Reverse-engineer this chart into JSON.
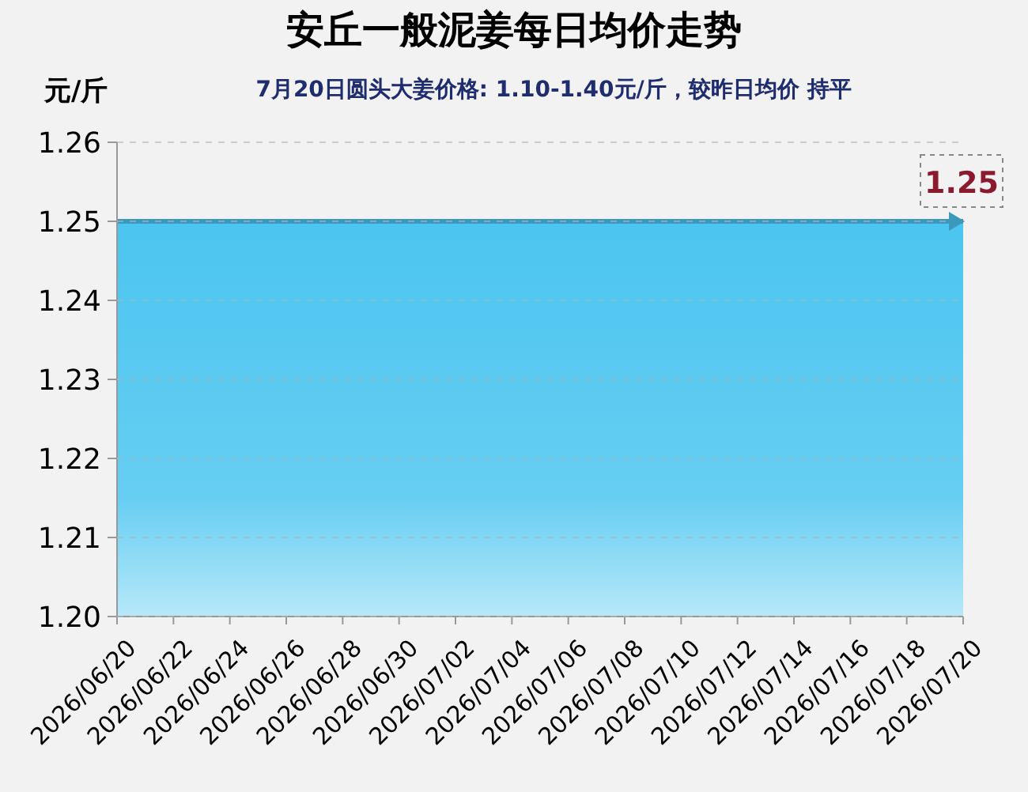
{
  "chart_data": {
    "type": "area",
    "title": "安丘一般泥姜每日均价走势",
    "subtitle": "7月20日圆头大姜价格: 1.10-1.40元/斤，较昨日均价 持平",
    "ylabel": "元/斤",
    "x": [
      "2026-06-20",
      "2026-06-21",
      "2026-06-22",
      "2026-06-23",
      "2026-06-24",
      "2026-06-25",
      "2026-06-26",
      "2026-06-27",
      "2026-06-28",
      "2026-06-29",
      "2026-06-30",
      "2026-07-01",
      "2026-07-02",
      "2026-07-03",
      "2026-07-04",
      "2026-07-05",
      "2026-07-06",
      "2026-07-07",
      "2026-07-08",
      "2026-07-09",
      "2026-07-10",
      "2026-07-11",
      "2026-07-12",
      "2026-07-13",
      "2026-07-14",
      "2026-07-15",
      "2026-07-16",
      "2026-07-17",
      "2026-07-18",
      "2026-07-19",
      "2026-07-20"
    ],
    "series": [
      {
        "color": "#4bc5f0",
        "values": [
          1.25,
          1.25,
          1.25,
          1.25,
          1.25,
          1.25,
          1.25,
          1.25,
          1.25,
          1.25,
          1.25,
          1.25,
          1.25,
          1.25,
          1.25,
          1.25,
          1.25,
          1.25,
          1.25,
          1.25,
          1.25,
          1.25,
          1.25,
          1.25,
          1.25,
          1.25,
          1.25,
          1.25,
          1.25,
          1.25,
          1.25
        ],
        "value_labels": [
          null,
          null,
          null,
          null,
          null,
          null,
          null,
          null,
          null,
          null,
          null,
          null,
          null,
          null,
          null,
          null,
          null,
          null,
          null,
          null,
          null,
          null,
          null,
          null,
          null,
          null,
          null,
          null,
          null,
          null,
          "1.25"
        ]
      }
    ],
    "xlim": [
      "2026-06-20",
      "2026-07-20"
    ],
    "xticks": [
      {
        "value": "2026-06-20",
        "label": "2026/06/20"
      },
      {
        "value": "2026-06-22",
        "label": "2026/06/22"
      },
      {
        "value": "2026-06-24",
        "label": "2026/06/24"
      },
      {
        "value": "2026-06-26",
        "label": "2026/06/26"
      },
      {
        "value": "2026-06-28",
        "label": "2026/06/28"
      },
      {
        "value": "2026-06-30",
        "label": "2026/06/30"
      },
      {
        "value": "2026-07-02",
        "label": "2026/07/02"
      },
      {
        "value": "2026-07-04",
        "label": "2026/07/04"
      },
      {
        "value": "2026-07-06",
        "label": "2026/07/06"
      },
      {
        "value": "2026-07-08",
        "label": "2026/07/08"
      },
      {
        "value": "2026-07-10",
        "label": "2026/07/10"
      },
      {
        "value": "2026-07-12",
        "label": "2026/07/12"
      },
      {
        "value": "2026-07-14",
        "label": "2026/07/14"
      },
      {
        "value": "2026-07-16",
        "label": "2026/07/16"
      },
      {
        "value": "2026-07-18",
        "label": "2026/07/18"
      },
      {
        "value": "2026-07-20",
        "label": "2026/07/20"
      }
    ],
    "ylim": [
      1.2,
      1.26
    ],
    "yticks": [
      {
        "value": 1.2,
        "label": "1.20"
      },
      1.21,
      1.22,
      1.23,
      1.24,
      1.25,
      1.26
    ],
    "grid": "y"
  }
}
